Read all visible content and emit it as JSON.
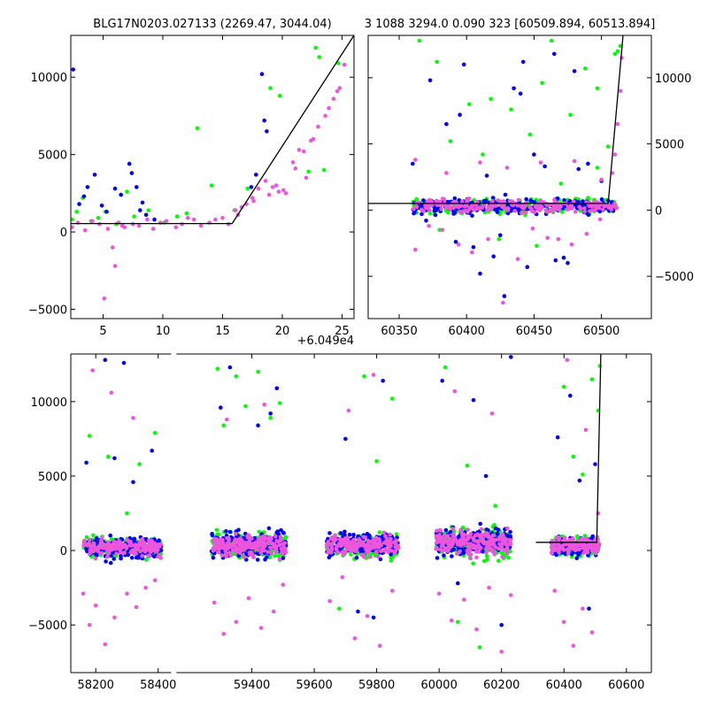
{
  "colors": {
    "green": "#00ff00",
    "blue": "#0000ff",
    "pink": "#ee55dd",
    "line": "#000000"
  },
  "chart_data": [
    {
      "type": "scatter",
      "title": "BLG17N0203.027133 (2269.47, 3044.04)",
      "xlim": [
        2.3,
        26
      ],
      "ylim": [
        -5600,
        12700
      ],
      "x_ticks": [
        5,
        10,
        15,
        20,
        25
      ],
      "y_ticks": [
        -5000,
        0,
        5000,
        10000
      ],
      "x_offset_label": "+6.049e4",
      "model_line": [
        [
          2.3,
          540
        ],
        [
          15.8,
          540
        ],
        [
          26,
          12700
        ]
      ],
      "series": [
        {
          "color_key": "blue",
          "x": [
            2.5,
            3.0,
            3.4,
            3.7,
            4.3,
            4.9,
            5.3,
            6.0,
            6.5,
            7.2,
            7.4,
            7.8,
            8.1,
            8.3,
            8.6,
            9.3,
            18.3,
            18.5,
            18.7,
            17.4,
            17.8
          ],
          "y": [
            10500,
            1800,
            2300,
            2900,
            3700,
            1700,
            1300,
            2800,
            2400,
            4400,
            3800,
            2900,
            1400,
            1900,
            1100,
            800,
            10200,
            7200,
            6500,
            2900,
            3700
          ]
        },
        {
          "color_key": "green",
          "x": [
            2.4,
            2.8,
            3.3,
            4.0,
            4.6,
            5.2,
            6.1,
            7.0,
            7.6,
            8.8,
            10.1,
            11.2,
            12.0,
            12.9,
            14.1,
            16.0,
            17.1,
            19.0,
            19.8,
            22.2,
            22.8,
            23.1,
            24.7,
            23.5
          ],
          "y": [
            800,
            1300,
            2200,
            700,
            900,
            1300,
            500,
            2600,
            1000,
            1400,
            600,
            1000,
            1200,
            6700,
            3000,
            1400,
            2800,
            9300,
            8800,
            3900,
            11900,
            11300,
            10900,
            4000
          ]
        },
        {
          "color_key": "pink",
          "x": [
            2.4,
            2.9,
            3.5,
            4.1,
            4.7,
            5.4,
            5.8,
            6.3,
            6.8,
            7.5,
            8.0,
            8.7,
            9.2,
            9.8,
            10.3,
            11.1,
            11.6,
            12.1,
            12.6,
            13.2,
            13.9,
            14.4,
            15.0,
            15.5,
            16.1,
            16.6,
            17.0,
            17.5,
            18.0,
            18.6,
            19.2,
            19.7,
            20.1,
            20.9,
            21.4,
            22.0,
            22.6,
            23.0,
            23.6,
            24.3,
            24.8,
            25.2,
            6.0,
            6.6,
            5.1,
            16.3,
            17.6,
            18.9,
            19.5,
            20.3,
            21.1,
            21.8,
            22.4,
            23.9,
            24.6
          ],
          "y": [
            300,
            600,
            100,
            700,
            500,
            200,
            -1000,
            600,
            300,
            500,
            400,
            800,
            200,
            600,
            700,
            300,
            500,
            900,
            800,
            400,
            600,
            800,
            900,
            500,
            1400,
            1600,
            1800,
            2200,
            2800,
            3300,
            2900,
            2600,
            2700,
            4500,
            5300,
            3500,
            6000,
            6800,
            7500,
            8600,
            9300,
            10800,
            -2200,
            400,
            -4300,
            1100,
            2000,
            2400,
            3000,
            2500,
            4100,
            5200,
            5900,
            8000,
            9100
          ]
        }
      ]
    },
    {
      "type": "scatter",
      "title": "3 1088 3294.0 0.090 323 [60509.894, 60513.894]",
      "xlim": [
        60327,
        60537
      ],
      "ylim": [
        -8200,
        13200
      ],
      "x_ticks": [
        60350,
        60400,
        60450,
        60500
      ],
      "y_ticks": [
        -5000,
        0,
        5000,
        10000
      ],
      "model_line": [
        [
          60327,
          500
        ],
        [
          60505,
          500
        ],
        [
          60516,
          13200
        ]
      ],
      "band": {
        "x_start": 60360,
        "x_end": 60512,
        "y_center": 300,
        "y_spread": 900,
        "n_per_series": 220
      },
      "series": [
        {
          "color_key": "blue",
          "x": [
            60360,
            60373,
            60385,
            60398,
            60410,
            60420,
            60428,
            60435,
            60442,
            60450,
            60458,
            60466,
            60475,
            60483,
            60490,
            60370,
            60395,
            60415,
            60440,
            60465,
            60480,
            60500,
            60392,
            60405,
            60425,
            60445,
            60472
          ],
          "y": [
            3500,
            9800,
            6500,
            11000,
            -4800,
            -3500,
            -6500,
            9200,
            11200,
            4200,
            3300,
            -3800,
            -4000,
            3100,
            3500,
            -800,
            7200,
            2600,
            8800,
            11800,
            10500,
            2200,
            -2400,
            -2800,
            -1900,
            -4300,
            -3600
          ]
        },
        {
          "color_key": "green",
          "x": [
            60365,
            60378,
            60388,
            60402,
            60412,
            60424,
            60433,
            60447,
            60456,
            60463,
            60477,
            60488,
            60497,
            60505,
            60510,
            60512,
            60514,
            60380,
            60418,
            60452,
            60470,
            60497
          ],
          "y": [
            12800,
            11200,
            5200,
            8000,
            4200,
            -2200,
            7600,
            5700,
            9600,
            12800,
            7200,
            10700,
            3200,
            4800,
            11800,
            12000,
            12400,
            -1500,
            8400,
            -2700,
            2000,
            9200
          ]
        },
        {
          "color_key": "pink",
          "x": [
            60362,
            60372,
            60382,
            60394,
            60404,
            60416,
            60427,
            60438,
            60449,
            60460,
            60468,
            60478,
            60489,
            60499,
            60508,
            60510,
            60512,
            60514,
            60515,
            60362,
            60385,
            60410,
            60430,
            60455,
            60480,
            60500
          ],
          "y": [
            -3000,
            -1200,
            -1500,
            -2600,
            -3200,
            -2200,
            -7000,
            -3700,
            -1400,
            -2100,
            -2200,
            -2600,
            -1800,
            -700,
            2800,
            4200,
            6500,
            9000,
            11500,
            3800,
            2800,
            3600,
            3200,
            3600,
            3700,
            2300
          ]
        }
      ]
    },
    {
      "type": "scatter",
      "xlim": [
        58120,
        60680
      ],
      "ylim": [
        -8200,
        13200
      ],
      "x_break": {
        "at": 58450,
        "gap_to": 59150
      },
      "x_ticks": [
        58200,
        58400,
        59400,
        59600,
        59800,
        60000,
        60200,
        60400,
        60600
      ],
      "y_ticks": [
        -5000,
        0,
        5000,
        10000
      ],
      "model_line": [
        [
          60310,
          550
        ],
        [
          60505,
          550
        ],
        [
          60518,
          13200
        ]
      ],
      "seasons": [
        {
          "x_start": 58160,
          "x_end": 58410,
          "y_center": 250,
          "y_spread": 1100,
          "n_per_series": 170
        },
        {
          "x_start": 59270,
          "x_end": 59510,
          "y_center": 350,
          "y_spread": 1300,
          "n_per_series": 190
        },
        {
          "x_start": 59640,
          "x_end": 59870,
          "y_center": 350,
          "y_spread": 1200,
          "n_per_series": 170
        },
        {
          "x_start": 59990,
          "x_end": 60230,
          "y_center": 500,
          "y_spread": 1500,
          "n_per_series": 200
        },
        {
          "x_start": 60360,
          "x_end": 60512,
          "y_center": 300,
          "y_spread": 1000,
          "n_per_series": 130
        }
      ],
      "series": [
        {
          "color_key": "blue",
          "x": [
            58170,
            58230,
            58260,
            58290,
            58320,
            58380,
            59300,
            59330,
            59420,
            59460,
            59480,
            59700,
            59740,
            59790,
            59820,
            60010,
            60060,
            60110,
            60150,
            60200,
            60230,
            60380,
            60420,
            60450,
            60480,
            60500
          ],
          "y": [
            5900,
            12800,
            6200,
            12600,
            4600,
            6700,
            9600,
            12300,
            8400,
            9200,
            10900,
            7500,
            -4100,
            -4500,
            11400,
            11400,
            -2200,
            10100,
            5000,
            -5000,
            13000,
            7600,
            10400,
            4700,
            -3900,
            5800
          ]
        },
        {
          "color_key": "green",
          "x": [
            58180,
            58240,
            58300,
            58340,
            58390,
            59290,
            59310,
            59350,
            59380,
            59420,
            59460,
            59490,
            59680,
            59760,
            59800,
            59850,
            60020,
            60060,
            60090,
            60130,
            60180,
            60400,
            60430,
            60460,
            60490,
            60510,
            60515
          ],
          "y": [
            7700,
            6300,
            2500,
            5800,
            7900,
            12200,
            8400,
            11700,
            9700,
            12000,
            8900,
            9900,
            -3900,
            11700,
            6000,
            10200,
            12300,
            -4800,
            5700,
            -6500,
            3000,
            11000,
            6300,
            5100,
            11500,
            9400,
            12400
          ]
        },
        {
          "color_key": "pink",
          "x": [
            58160,
            58180,
            58200,
            58230,
            58260,
            58300,
            58330,
            58360,
            58390,
            59280,
            59310,
            59350,
            59390,
            59430,
            59470,
            59500,
            59650,
            59690,
            59730,
            59770,
            59810,
            59850,
            60000,
            60040,
            60080,
            60120,
            60160,
            60200,
            60230,
            60370,
            60400,
            60430,
            60460,
            60490,
            60510,
            58190,
            58250,
            58320,
            59320,
            59440,
            59710,
            59790,
            60050,
            60170,
            60410,
            60470
          ],
          "y": [
            -2900,
            -5000,
            -3700,
            -6300,
            -4500,
            -2900,
            -3800,
            -2500,
            -2000,
            -3500,
            -5600,
            -4800,
            -3200,
            -5200,
            -4100,
            -2300,
            -3400,
            -1800,
            -5900,
            -4400,
            -6400,
            -2700,
            -2900,
            -4700,
            -3300,
            -5300,
            -2500,
            -6800,
            -3000,
            -2700,
            -4800,
            -6400,
            -3900,
            -5500,
            2500,
            12100,
            10600,
            8900,
            8800,
            9800,
            9400,
            11800,
            10700,
            9200,
            12800,
            8100
          ]
        }
      ]
    }
  ]
}
